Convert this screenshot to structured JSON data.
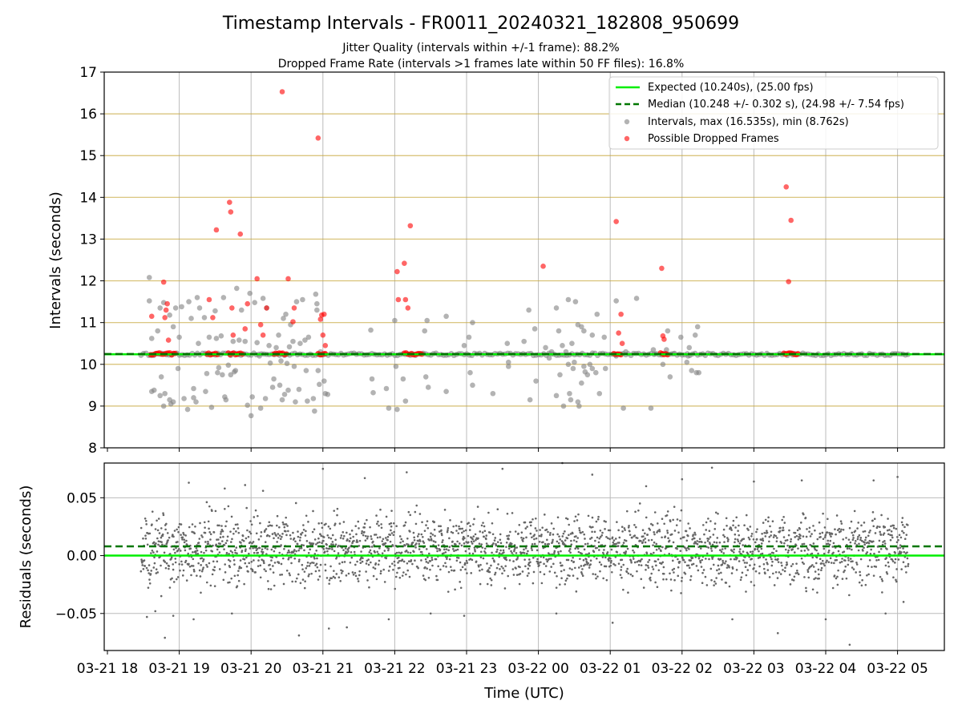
{
  "figure": {
    "title": "Timestamp Intervals - FR0011_20240321_182808_950699",
    "subtitle_1": "Jitter Quality (intervals within +/-1 frame): 88.2%",
    "subtitle_2": "Dropped Frame Rate (intervals >1 frames late within 50 FF files): 16.8%",
    "xlabel": "Time (UTC)"
  },
  "colors": {
    "expected": "#00ee00",
    "median": "#007700",
    "intervals": "#808080",
    "dropped": "#ff0000",
    "y_grid": "#c8aa40",
    "x_grid": "#bbbbbb"
  },
  "x_ticks": [
    "03-21 18",
    "03-21 19",
    "03-21 20",
    "03-21 21",
    "03-21 22",
    "03-21 23",
    "03-22 00",
    "03-22 01",
    "03-22 02",
    "03-22 03",
    "03-22 04",
    "03-22 05"
  ],
  "chart_data": [
    {
      "type": "scatter",
      "ylabel": "Intervals (seconds)",
      "ylim": [
        8,
        17
      ],
      "yticks": [
        8,
        9,
        10,
        11,
        12,
        13,
        14,
        15,
        16,
        17
      ],
      "xlim": [
        "03-21 17:57",
        "03-22 05:30"
      ],
      "expected_line": 10.24,
      "median_line": 10.248,
      "grid": "horizontal gold lines + vertical grey lines at hours",
      "legend_position": "top-right",
      "legend": [
        "Expected (10.240s), (25.00 fps)",
        "Median (10.248 +/- 0.302 s), (24.98 +/- 7.54 fps)",
        "Intervals, max (16.535s), min (8.762s)",
        "Possible Dropped Frames"
      ],
      "baseline_band": {
        "time_start": "03-21 18:28",
        "time_end": "03-22 05:09",
        "y": 10.24
      },
      "intervals_outliers": [
        [
          "18:35",
          12.08
        ],
        [
          "18:35",
          11.52
        ],
        [
          "18:37",
          10.62
        ],
        [
          "18:37",
          9.35
        ],
        [
          "18:39",
          9.38
        ],
        [
          "18:42",
          10.8
        ],
        [
          "18:44",
          11.35
        ],
        [
          "18:44",
          9.25
        ],
        [
          "18:45",
          9.7
        ],
        [
          "18:47",
          11.48
        ],
        [
          "18:47",
          9.0
        ],
        [
          "18:48",
          9.3
        ],
        [
          "18:52",
          11.18
        ],
        [
          "18:52",
          9.15
        ],
        [
          "18:53",
          9.05
        ],
        [
          "18:55",
          10.9
        ],
        [
          "18:55",
          9.1
        ],
        [
          "18:57",
          11.35
        ],
        [
          "18:59",
          9.9
        ],
        [
          "19:00",
          10.65
        ],
        [
          "19:02",
          11.38
        ],
        [
          "19:04",
          9.18
        ],
        [
          "19:07",
          8.92
        ],
        [
          "19:08",
          11.5
        ],
        [
          "19:10",
          11.1
        ],
        [
          "19:12",
          9.42
        ],
        [
          "19:12",
          9.2
        ],
        [
          "19:14",
          9.1
        ],
        [
          "19:15",
          11.6
        ],
        [
          "19:16",
          10.5
        ],
        [
          "19:17",
          11.35
        ],
        [
          "19:21",
          11.12
        ],
        [
          "19:22",
          9.35
        ],
        [
          "19:23",
          9.78
        ],
        [
          "19:25",
          10.65
        ],
        [
          "19:27",
          8.97
        ],
        [
          "19:30",
          11.28
        ],
        [
          "19:31",
          10.62
        ],
        [
          "19:32",
          9.8
        ],
        [
          "19:33",
          9.92
        ],
        [
          "19:35",
          10.68
        ],
        [
          "19:36",
          9.75
        ],
        [
          "19:37",
          11.6
        ],
        [
          "19:38",
          9.22
        ],
        [
          "19:39",
          9.15
        ],
        [
          "19:41",
          9.98
        ],
        [
          "19:43",
          9.75
        ],
        [
          "19:45",
          10.55
        ],
        [
          "19:46",
          9.82
        ],
        [
          "19:47",
          9.85
        ],
        [
          "19:48",
          11.82
        ],
        [
          "19:50",
          10.58
        ],
        [
          "19:52",
          11.3
        ],
        [
          "19:55",
          10.55
        ],
        [
          "19:57",
          9.02
        ],
        [
          "19:59",
          11.7
        ],
        [
          "20:00",
          8.77
        ],
        [
          "20:01",
          9.22
        ],
        [
          "20:03",
          11.48
        ],
        [
          "20:05",
          10.52
        ],
        [
          "20:07",
          10.2
        ],
        [
          "20:08",
          8.95
        ],
        [
          "20:10",
          11.58
        ],
        [
          "20:12",
          9.18
        ],
        [
          "20:13",
          11.35
        ],
        [
          "20:15",
          10.45
        ],
        [
          "20:16",
          10.03
        ],
        [
          "20:18",
          9.45
        ],
        [
          "20:19",
          9.65
        ],
        [
          "20:21",
          10.4
        ],
        [
          "20:23",
          10.7
        ],
        [
          "20:24",
          9.5
        ],
        [
          "20:25",
          10.08
        ],
        [
          "20:26",
          9.15
        ],
        [
          "20:27",
          11.1
        ],
        [
          "20:28",
          9.28
        ],
        [
          "20:29",
          11.2
        ],
        [
          "20:30",
          10.02
        ],
        [
          "20:31",
          9.38
        ],
        [
          "20:32",
          10.42
        ],
        [
          "20:33",
          10.95
        ],
        [
          "20:35",
          10.55
        ],
        [
          "20:36",
          9.95
        ],
        [
          "20:37",
          9.1
        ],
        [
          "20:38",
          11.5
        ],
        [
          "20:40",
          9.4
        ],
        [
          "20:41",
          10.5
        ],
        [
          "20:43",
          11.55
        ],
        [
          "20:45",
          10.58
        ],
        [
          "20:46",
          9.85
        ],
        [
          "20:47",
          9.12
        ],
        [
          "20:48",
          10.65
        ],
        [
          "20:52",
          9.18
        ],
        [
          "20:53",
          8.88
        ],
        [
          "20:54",
          11.68
        ],
        [
          "20:55",
          11.45
        ],
        [
          "20:55",
          11.3
        ],
        [
          "20:56",
          9.85
        ],
        [
          "20:57",
          9.52
        ],
        [
          "20:58",
          10.3
        ],
        [
          "21:01",
          9.6
        ],
        [
          "21:02",
          9.3
        ],
        [
          "21:04",
          9.28
        ],
        [
          "21:40",
          10.82
        ],
        [
          "21:41",
          9.65
        ],
        [
          "21:42",
          9.32
        ],
        [
          "21:53",
          9.42
        ],
        [
          "21:55",
          8.95
        ],
        [
          "22:00",
          11.05
        ],
        [
          "22:01",
          9.95
        ],
        [
          "22:02",
          8.92
        ],
        [
          "22:07",
          9.65
        ],
        [
          "22:09",
          9.12
        ],
        [
          "22:25",
          10.8
        ],
        [
          "22:26",
          9.7
        ],
        [
          "22:27",
          11.05
        ],
        [
          "22:28",
          9.45
        ],
        [
          "22:43",
          11.15
        ],
        [
          "22:43",
          9.35
        ],
        [
          "22:58",
          10.45
        ],
        [
          "23:02",
          10.65
        ],
        [
          "23:03",
          9.8
        ],
        [
          "23:05",
          11.0
        ],
        [
          "23:05",
          9.5
        ],
        [
          "23:22",
          9.3
        ],
        [
          "23:34",
          10.5
        ],
        [
          "23:35",
          10.05
        ],
        [
          "23:35",
          9.95
        ],
        [
          "23:48",
          10.55
        ],
        [
          "23:52",
          11.3
        ],
        [
          "23:53",
          9.15
        ],
        [
          "23:57",
          10.85
        ],
        [
          "23:58",
          9.6
        ],
        [
          "00:06",
          10.4
        ],
        [
          "00:09",
          10.15
        ],
        [
          "00:11",
          10.3
        ],
        [
          "00:15",
          11.35
        ],
        [
          "00:15",
          9.25
        ],
        [
          "00:17",
          10.8
        ],
        [
          "00:18",
          9.75
        ],
        [
          "00:20",
          10.45
        ],
        [
          "00:21",
          9.0
        ],
        [
          "00:23",
          10.3
        ],
        [
          "00:25",
          11.55
        ],
        [
          "00:25",
          10.0
        ],
        [
          "00:26",
          9.3
        ],
        [
          "00:27",
          9.15
        ],
        [
          "00:28",
          10.5
        ],
        [
          "00:29",
          9.9
        ],
        [
          "00:30",
          10.05
        ],
        [
          "00:31",
          11.5
        ],
        [
          "00:33",
          10.95
        ],
        [
          "00:33",
          9.1
        ],
        [
          "00:34",
          9.0
        ],
        [
          "00:36",
          10.9
        ],
        [
          "00:36",
          9.55
        ],
        [
          "00:38",
          10.8
        ],
        [
          "00:38",
          9.95
        ],
        [
          "00:39",
          9.82
        ],
        [
          "00:41",
          9.75
        ],
        [
          "00:43",
          10.0
        ],
        [
          "00:45",
          9.9
        ],
        [
          "00:45",
          10.7
        ],
        [
          "00:48",
          9.8
        ],
        [
          "00:49",
          11.2
        ],
        [
          "00:51",
          9.3
        ],
        [
          "00:55",
          10.65
        ],
        [
          "00:56",
          9.9
        ],
        [
          "01:05",
          11.52
        ],
        [
          "01:05",
          10.2
        ],
        [
          "01:11",
          8.95
        ],
        [
          "01:13",
          10.3
        ],
        [
          "01:22",
          11.58
        ],
        [
          "01:34",
          8.95
        ],
        [
          "01:36",
          10.35
        ],
        [
          "01:37",
          10.25
        ],
        [
          "01:44",
          10.0
        ],
        [
          "01:47",
          10.35
        ],
        [
          "01:48",
          10.8
        ],
        [
          "01:50",
          9.7
        ],
        [
          "01:53",
          10.25
        ],
        [
          "01:59",
          10.65
        ],
        [
          "02:04",
          10.05
        ],
        [
          "02:05",
          10.2
        ],
        [
          "02:06",
          10.4
        ],
        [
          "02:08",
          9.85
        ],
        [
          "02:11",
          10.7
        ],
        [
          "02:12",
          9.8
        ],
        [
          "02:13",
          10.9
        ],
        [
          "02:14",
          9.8
        ]
      ],
      "dropped_frames": [
        [
          "18:37",
          11.15
        ],
        [
          "18:47",
          11.97
        ],
        [
          "18:48",
          11.12
        ],
        [
          "18:49",
          11.3
        ],
        [
          "18:50",
          11.45
        ],
        [
          "18:51",
          10.58
        ],
        [
          "19:25",
          11.55
        ],
        [
          "19:28",
          11.12
        ],
        [
          "19:31",
          13.22
        ],
        [
          "19:42",
          13.88
        ],
        [
          "19:43",
          13.65
        ],
        [
          "19:44",
          11.35
        ],
        [
          "19:45",
          10.7
        ],
        [
          "19:51",
          13.12
        ],
        [
          "19:55",
          10.85
        ],
        [
          "19:57",
          11.45
        ],
        [
          "20:05",
          12.05
        ],
        [
          "20:08",
          10.95
        ],
        [
          "20:10",
          10.7
        ],
        [
          "20:13",
          11.35
        ],
        [
          "20:26",
          16.53
        ],
        [
          "20:31",
          12.05
        ],
        [
          "20:35",
          11.02
        ],
        [
          "20:36",
          11.35
        ],
        [
          "20:56",
          15.42
        ],
        [
          "20:58",
          11.08
        ],
        [
          "20:59",
          11.18
        ],
        [
          "21:00",
          10.7
        ],
        [
          "21:01",
          11.2
        ],
        [
          "21:02",
          10.45
        ],
        [
          "22:02",
          12.22
        ],
        [
          "22:03",
          11.55
        ],
        [
          "22:08",
          12.42
        ],
        [
          "22:09",
          11.55
        ],
        [
          "22:11",
          11.35
        ],
        [
          "22:13",
          13.32
        ],
        [
          "00:04",
          12.35
        ],
        [
          "01:05",
          13.42
        ],
        [
          "01:07",
          10.75
        ],
        [
          "01:09",
          11.2
        ],
        [
          "01:10",
          10.5
        ],
        [
          "01:43",
          12.3
        ],
        [
          "01:44",
          10.68
        ],
        [
          "01:45",
          10.6
        ],
        [
          "03:27",
          14.25
        ],
        [
          "03:29",
          11.98
        ],
        [
          "03:31",
          13.45
        ]
      ]
    },
    {
      "type": "scatter",
      "ylabel": "Residuals (seconds)",
      "ylim": [
        -0.082,
        0.08
      ],
      "yticks": [
        0.05,
        0.0,
        -0.05
      ],
      "ytick_labels": [
        "0.05",
        "0.00",
        "−0.05"
      ],
      "expected_line": 0.0,
      "median_line": 0.008,
      "residual_band": {
        "center": 0.005,
        "spread": 0.03
      },
      "residual_outliers": [
        [
          "18:33",
          -0.053
        ],
        [
          "18:40",
          -0.048
        ],
        [
          "18:45",
          -0.035
        ],
        [
          "18:48",
          -0.071
        ],
        [
          "18:55",
          -0.052
        ],
        [
          "19:08",
          0.063
        ],
        [
          "19:12",
          -0.055
        ],
        [
          "19:18",
          -0.032
        ],
        [
          "19:38",
          0.058
        ],
        [
          "19:44",
          -0.05
        ],
        [
          "19:55",
          0.061
        ],
        [
          "20:10",
          0.056
        ],
        [
          "20:40",
          -0.069
        ],
        [
          "21:00",
          0.075
        ],
        [
          "21:05",
          -0.063
        ],
        [
          "21:20",
          -0.062
        ],
        [
          "21:35",
          0.067
        ],
        [
          "21:55",
          -0.055
        ],
        [
          "22:10",
          0.072
        ],
        [
          "22:30",
          -0.05
        ],
        [
          "22:58",
          -0.052
        ],
        [
          "23:30",
          0.075
        ],
        [
          "00:15",
          -0.05
        ],
        [
          "00:20",
          0.08
        ],
        [
          "00:45",
          0.07
        ],
        [
          "01:02",
          -0.058
        ],
        [
          "01:30",
          0.06
        ],
        [
          "02:00",
          0.066
        ],
        [
          "02:25",
          0.076
        ],
        [
          "02:42",
          -0.055
        ],
        [
          "03:00",
          0.064
        ],
        [
          "03:20",
          -0.067
        ],
        [
          "03:40",
          0.065
        ],
        [
          "04:00",
          -0.055
        ],
        [
          "04:20",
          -0.077
        ],
        [
          "04:40",
          0.065
        ],
        [
          "04:50",
          -0.05
        ],
        [
          "05:00",
          0.068
        ],
        [
          "05:05",
          -0.04
        ]
      ]
    }
  ]
}
